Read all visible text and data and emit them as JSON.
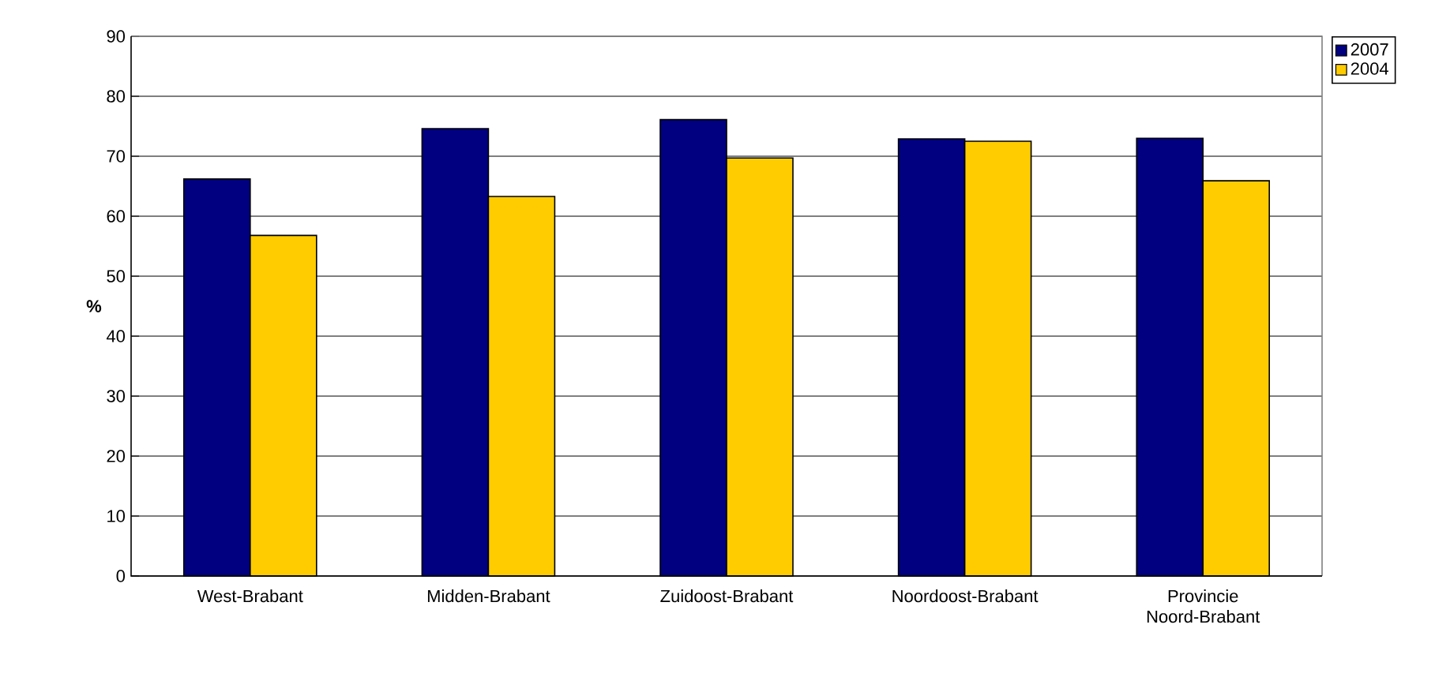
{
  "chart_data": {
    "type": "bar",
    "ylabel": "%",
    "categories": [
      "West-Brabant",
      "Midden-Brabant",
      "Zuidoost-Brabant",
      "Noordoost-Brabant",
      "Provincie Noord-Brabant"
    ],
    "series": [
      {
        "name": "2007",
        "color": "#000080",
        "values": [
          66.2,
          74.6,
          76.1,
          72.9,
          73.0
        ]
      },
      {
        "name": "2004",
        "color": "#ffcc00",
        "values": [
          56.8,
          63.3,
          69.7,
          72.5,
          65.9
        ]
      }
    ],
    "ylim": [
      0,
      90
    ],
    "yticks": [
      0,
      10,
      20,
      30,
      40,
      50,
      60,
      70,
      80,
      90
    ],
    "grid": "y",
    "legend": "top right"
  }
}
